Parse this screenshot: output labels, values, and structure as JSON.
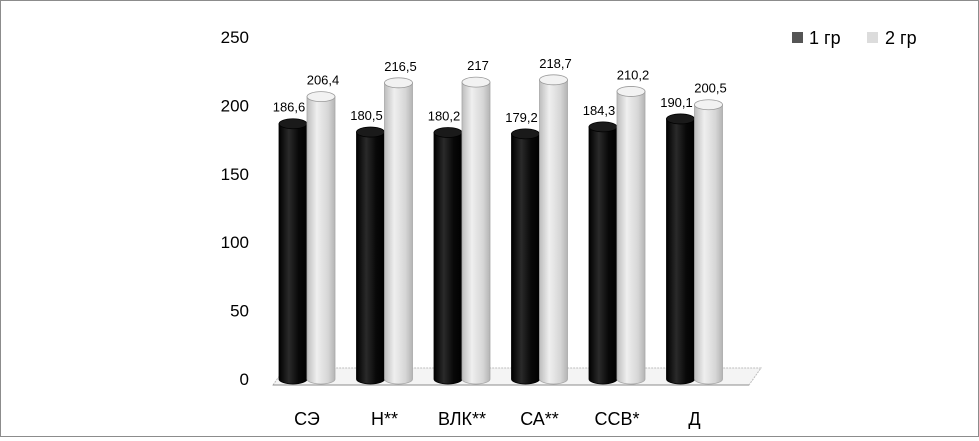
{
  "chart_data": {
    "type": "bar",
    "categories": [
      "СЭ",
      "Н**",
      "ВЛК**",
      "СА**",
      "ССВ*",
      "Д"
    ],
    "series": [
      {
        "name": "1 гр",
        "values": [
          186.6,
          180.5,
          180.2,
          179.2,
          184.3,
          190.1
        ],
        "labels": [
          "186,6",
          "180,5",
          "180,2",
          "179,2",
          "184,3",
          "190,1"
        ],
        "color": "#000000"
      },
      {
        "name": "2 гр",
        "values": [
          206.4,
          216.5,
          217,
          218.7,
          210.2,
          200.5
        ],
        "labels": [
          "206,4",
          "216,5",
          "217",
          "218,7",
          "210,2",
          "200,5"
        ],
        "color": "#d9d9d9"
      }
    ],
    "yticks": [
      "0",
      "50",
      "100",
      "150",
      "200",
      "250"
    ],
    "ylim": [
      0,
      250
    ],
    "grid": false,
    "legend": "top-right",
    "style": "3d-cylinder"
  }
}
